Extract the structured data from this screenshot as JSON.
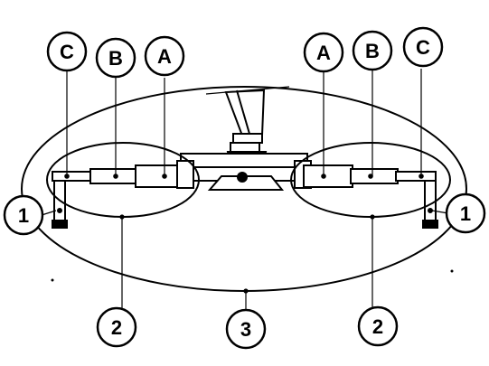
{
  "labels": {
    "top_left_c": "C",
    "top_left_b": "B",
    "top_left_a": "A",
    "top_right_a": "A",
    "top_right_b": "B",
    "top_right_c": "C",
    "side_left_1": "1",
    "side_right_1": "1",
    "bottom_left_2": "2",
    "bottom_center_3": "3",
    "bottom_right_2": "2"
  }
}
